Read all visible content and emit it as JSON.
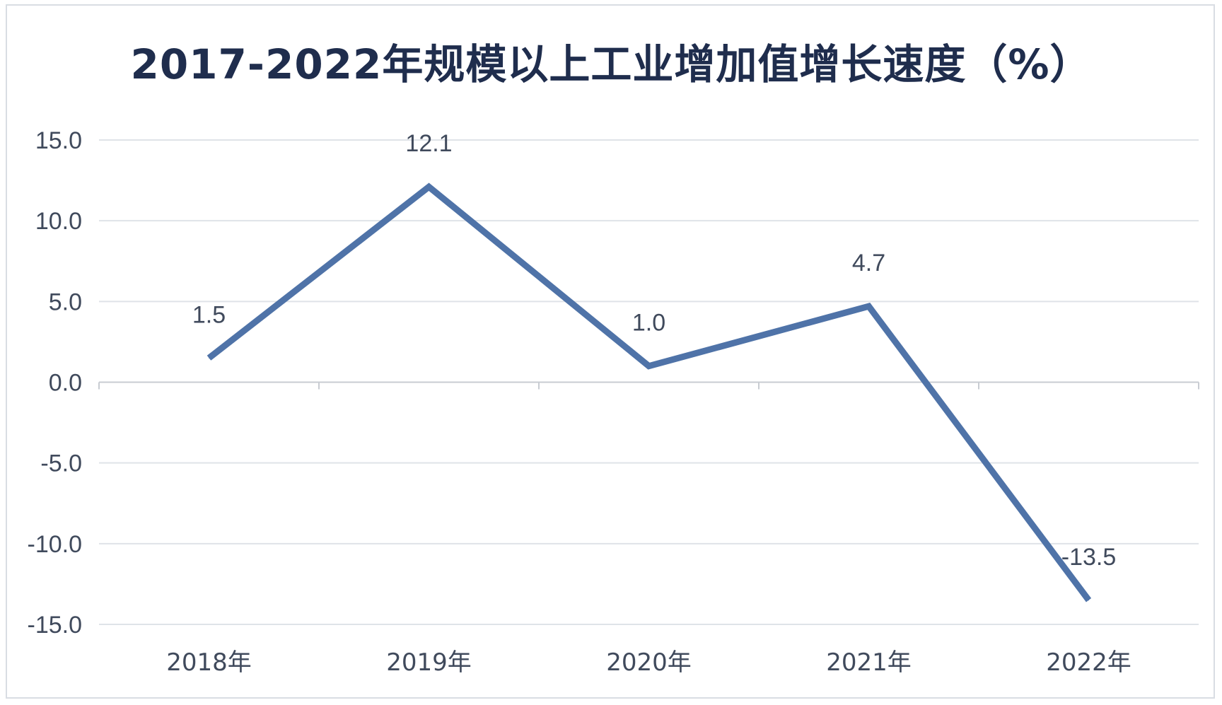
{
  "chart_data": {
    "type": "line",
    "title": "2017-2022年规模以上工业增加值增长速度（%）",
    "categories": [
      "2018年",
      "2019年",
      "2020年",
      "2021年",
      "2022年"
    ],
    "values": [
      1.5,
      12.1,
      1.0,
      4.7,
      -13.5
    ],
    "data_labels": [
      "1.5",
      "12.1",
      "1.0",
      "4.7",
      "-13.5"
    ],
    "ylim": [
      -15,
      15
    ],
    "yticks": [
      15,
      10,
      5,
      0,
      -5,
      -10,
      -15
    ],
    "ytick_labels": [
      "15.0",
      "10.0",
      "5.0",
      "0.0",
      "-5.0",
      "-10.0",
      "-15.0"
    ],
    "grid": true,
    "legend": "none",
    "line_color": "#4f73a8"
  }
}
